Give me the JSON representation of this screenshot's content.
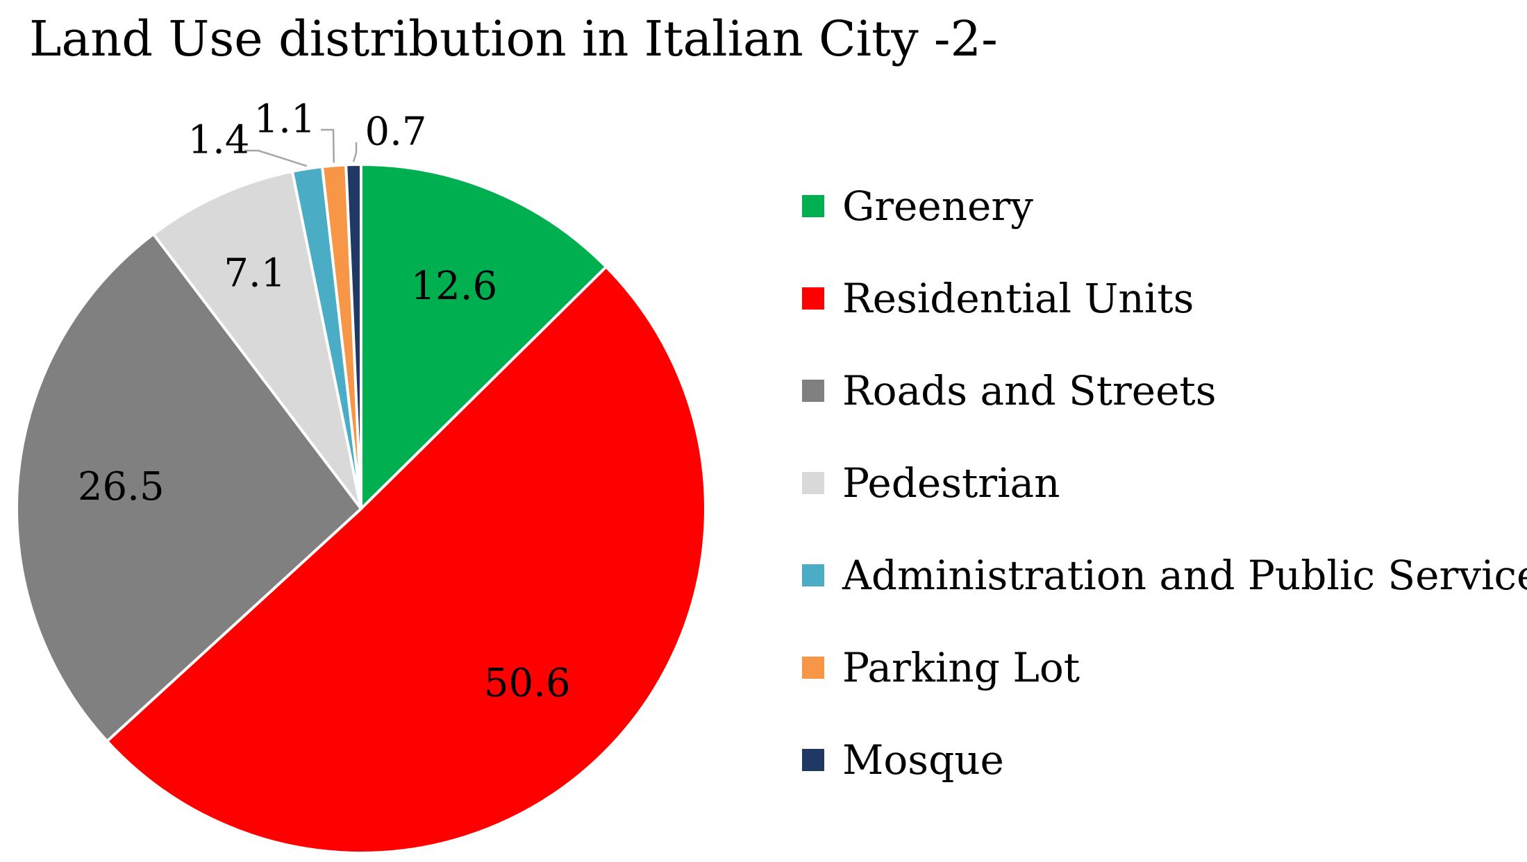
{
  "chart_data": {
    "type": "pie",
    "title": "Land Use distribution in Italian City -2-",
    "categories": [
      "Greenery",
      "Residential Units",
      "Roads and Streets",
      "Pedestrian",
      "Administration and Public Services",
      "Parking Lot",
      "Mosque"
    ],
    "values": [
      12.6,
      50.6,
      26.5,
      7.1,
      1.4,
      1.1,
      0.7
    ],
    "value_labels": [
      "12.6",
      "50.6",
      "26.5",
      "7.1",
      "1.4",
      "1.1",
      "0.7"
    ],
    "colors": [
      "#00b050",
      "#ff0000",
      "#808080",
      "#d9d9d9",
      "#4bacc6",
      "#f79646",
      "#1f3864"
    ],
    "start_angle_deg": 0,
    "direction": "clockwise",
    "legend_position": "right"
  }
}
